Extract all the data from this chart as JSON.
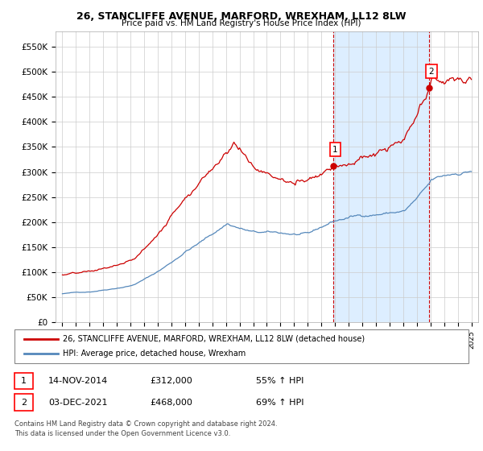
{
  "title": "26, STANCLIFFE AVENUE, MARFORD, WREXHAM, LL12 8LW",
  "subtitle": "Price paid vs. HM Land Registry's House Price Index (HPI)",
  "sale1_date": 2014.87,
  "sale1_price": 312000,
  "sale1_label": "1",
  "sale1_date_str": "14-NOV-2014",
  "sale1_price_str": "£312,000",
  "sale1_pct_str": "55% ↑ HPI",
  "sale2_date": 2021.92,
  "sale2_price": 468000,
  "sale2_label": "2",
  "sale2_date_str": "03-DEC-2021",
  "sale2_price_str": "£468,000",
  "sale2_pct_str": "69% ↑ HPI",
  "hpi_color": "#5588bb",
  "price_color": "#cc0000",
  "yticks": [
    0,
    50000,
    100000,
    150000,
    200000,
    250000,
    300000,
    350000,
    400000,
    450000,
    500000,
    550000
  ],
  "xmin": 1994.5,
  "xmax": 2025.5,
  "ymin": 0,
  "ymax": 580000,
  "legend_label_price": "26, STANCLIFFE AVENUE, MARFORD, WREXHAM, LL12 8LW (detached house)",
  "legend_label_hpi": "HPI: Average price, detached house, Wrexham",
  "footer_line1": "Contains HM Land Registry data © Crown copyright and database right 2024.",
  "footer_line2": "This data is licensed under the Open Government Licence v3.0.",
  "shading_color": "#ddeeff",
  "vline_color": "#cc0000",
  "vline_style": "--",
  "grid_color": "#cccccc"
}
